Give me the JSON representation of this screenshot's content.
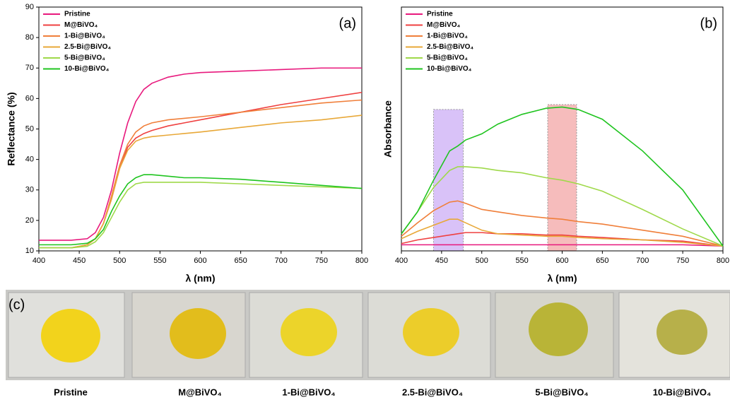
{
  "chart_data": [
    {
      "type": "line",
      "annotation": "(a)",
      "x_label": "λ (nm)",
      "y_label": "Reflectance (%)",
      "x": [
        400,
        420,
        440,
        460,
        470,
        480,
        490,
        500,
        510,
        520,
        530,
        540,
        560,
        580,
        600,
        650,
        700,
        750,
        800
      ],
      "xlim": [
        400,
        800
      ],
      "xticks": [
        400,
        450,
        500,
        550,
        600,
        650,
        700,
        750,
        800
      ],
      "ylim": [
        10,
        90
      ],
      "yticks": [
        10,
        20,
        30,
        40,
        50,
        60,
        70,
        80,
        90
      ],
      "series": [
        {
          "name": "Pristine",
          "color": "#e8197d",
          "values": [
            13.5,
            13.5,
            13.5,
            14,
            16,
            21,
            30,
            42,
            52,
            59,
            63,
            65,
            67,
            68,
            68.5,
            69,
            69.5,
            70,
            70
          ]
        },
        {
          "name": "M@BiVO₄",
          "color": "#ef4040",
          "values": [
            11,
            11,
            11,
            12,
            14,
            19,
            27,
            37,
            44,
            47,
            48.5,
            49.5,
            51,
            52,
            53,
            55.5,
            58,
            60,
            62
          ]
        },
        {
          "name": "1-Bi@BiVO₄",
          "color": "#f07f3a",
          "values": [
            11,
            11,
            11,
            12,
            14,
            19,
            28,
            38,
            45,
            49,
            51,
            52,
            53,
            53.5,
            54,
            55.5,
            57,
            58.5,
            59.5
          ]
        },
        {
          "name": "2.5-Bi@BiVO₄",
          "color": "#e8a838",
          "values": [
            11,
            11,
            11,
            12,
            14,
            19,
            27,
            37,
            43,
            46,
            47,
            47.5,
            48,
            48.5,
            49,
            50.5,
            52,
            53,
            54.5
          ]
        },
        {
          "name": "5-Bi@BiVO₄",
          "color": "#9fd94a",
          "values": [
            11,
            11,
            11,
            11.5,
            13,
            16,
            21,
            26,
            30,
            32,
            32.5,
            32.5,
            32.5,
            32.5,
            32.5,
            32,
            31.5,
            31,
            30.5
          ]
        },
        {
          "name": "10-Bi@BiVO₄",
          "color": "#1fc41f",
          "values": [
            12,
            12,
            12,
            12.5,
            14,
            17,
            23,
            28,
            32,
            34,
            35,
            35,
            34.5,
            34,
            34,
            33.5,
            32.5,
            31.5,
            30.5
          ]
        }
      ]
    },
    {
      "type": "line",
      "annotation": "(b)",
      "x_label": "λ (nm)",
      "y_label": "Absorbance",
      "x": [
        400,
        420,
        440,
        460,
        470,
        480,
        500,
        520,
        550,
        580,
        600,
        620,
        650,
        700,
        750,
        800
      ],
      "xlim": [
        400,
        800
      ],
      "xticks": [
        400,
        450,
        500,
        550,
        600,
        650,
        700,
        750,
        800
      ],
      "ylim": [
        0,
        1
      ],
      "highlights": [
        {
          "xlim": [
            440,
            477
          ],
          "top": 0.58,
          "color": "#c9a8f5"
        },
        {
          "xlim": [
            582,
            618
          ],
          "top": 0.6,
          "color": "#f2a0a0"
        }
      ],
      "series": [
        {
          "name": "Pristine",
          "color": "#e8197d",
          "values": [
            0.025,
            0.025,
            0.025,
            0.025,
            0.025,
            0.025,
            0.025,
            0.025,
            0.025,
            0.025,
            0.025,
            0.025,
            0.025,
            0.025,
            0.025,
            0.02
          ]
        },
        {
          "name": "M@BiVO₄",
          "color": "#ef4040",
          "values": [
            0.03,
            0.045,
            0.055,
            0.065,
            0.07,
            0.075,
            0.075,
            0.07,
            0.07,
            0.065,
            0.065,
            0.06,
            0.055,
            0.045,
            0.04,
            0.02
          ]
        },
        {
          "name": "1-Bi@BiVO₄",
          "color": "#f07f3a",
          "values": [
            0.06,
            0.115,
            0.165,
            0.2,
            0.205,
            0.195,
            0.17,
            0.16,
            0.145,
            0.135,
            0.13,
            0.12,
            0.11,
            0.085,
            0.06,
            0.02
          ]
        },
        {
          "name": "2.5-Bi@BiVO₄",
          "color": "#e8a838",
          "values": [
            0.05,
            0.08,
            0.105,
            0.13,
            0.13,
            0.115,
            0.085,
            0.07,
            0.065,
            0.06,
            0.06,
            0.055,
            0.05,
            0.045,
            0.035,
            0.02
          ]
        },
        {
          "name": "5-Bi@BiVO₄",
          "color": "#9fd94a",
          "values": [
            0.07,
            0.16,
            0.26,
            0.33,
            0.345,
            0.345,
            0.34,
            0.33,
            0.32,
            0.3,
            0.29,
            0.275,
            0.245,
            0.17,
            0.09,
            0.02
          ]
        },
        {
          "name": "10-Bi@BiVO₄",
          "color": "#1fc41f",
          "values": [
            0.07,
            0.16,
            0.29,
            0.41,
            0.43,
            0.455,
            0.48,
            0.52,
            0.56,
            0.585,
            0.59,
            0.58,
            0.54,
            0.41,
            0.25,
            0.02
          ]
        }
      ]
    }
  ],
  "panel_c": {
    "label": "(c)",
    "captions": [
      "Pristine",
      "M@BiVO₄",
      "1-Bi@BiVO₄",
      "2.5-Bi@BiVO₄",
      "5-Bi@BiVO₄",
      "10-Bi@BiVO₄"
    ]
  }
}
